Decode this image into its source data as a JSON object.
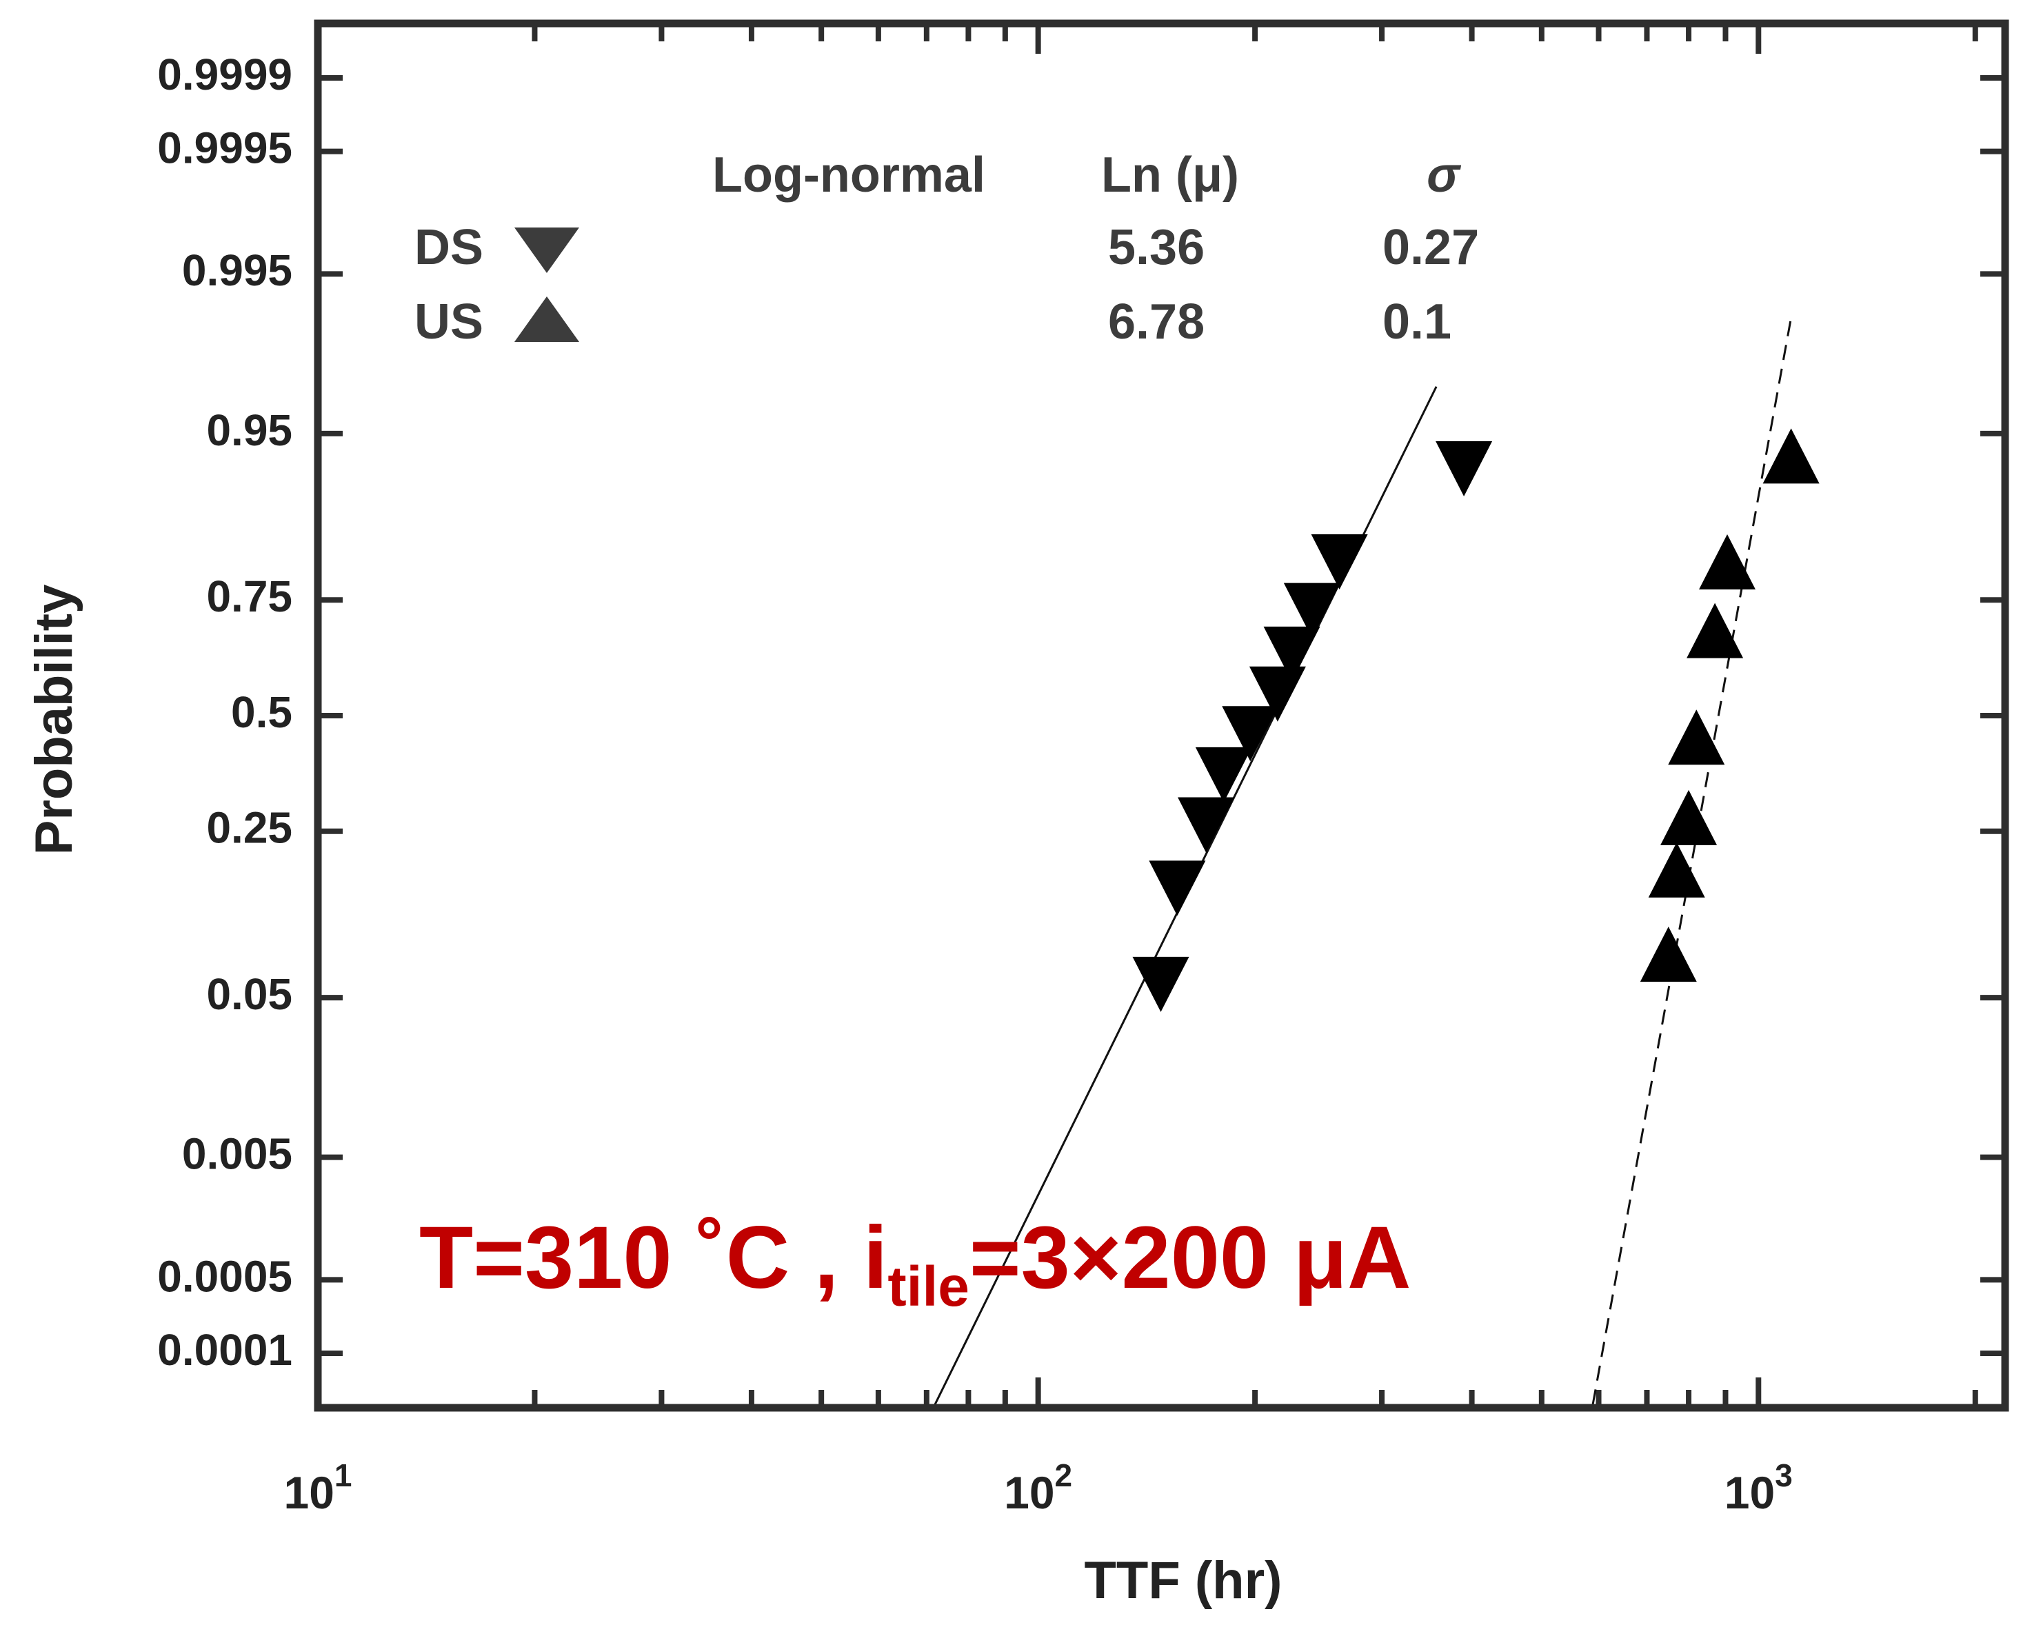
{
  "chart_data": {
    "type": "scatter",
    "xlabel": "TTF (hr)",
    "ylabel": "Probability",
    "xscale": "log",
    "yscale": "log-normal probability",
    "xlim": [
      10,
      2200
    ],
    "x_ticks": [
      {
        "value": 10,
        "base": "10",
        "exp": "1"
      },
      {
        "value": 100,
        "base": "10",
        "exp": "2"
      },
      {
        "value": 1000,
        "base": "10",
        "exp": "3"
      }
    ],
    "y_ticks": [
      "0.9999",
      "0.9995",
      "0.995",
      "0.95",
      "0.75",
      "0.5",
      "0.25",
      "0.05",
      "0.005",
      "0.0005",
      "0.0001"
    ],
    "grid": false,
    "series": [
      {
        "name": "DS",
        "marker": "triangle-down",
        "color": "#000000",
        "fit": {
          "ln_mu": 5.36,
          "sigma": 0.27,
          "line": "solid"
        },
        "x": [
          148,
          156,
          171,
          181,
          197,
          215,
          225,
          240,
          262,
          390
        ],
        "y": [
          0.0585,
          0.157,
          0.262,
          0.365,
          0.458,
          0.55,
          0.64,
          0.73,
          0.815,
          0.925
        ]
      },
      {
        "name": "US",
        "marker": "triangle-up",
        "color": "#000000",
        "fit": {
          "ln_mu": 6.78,
          "sigma": 0.1,
          "line": "dashed"
        },
        "x": [
          750,
          770,
          800,
          820,
          870,
          905,
          1110
        ],
        "y": [
          0.082,
          0.184,
          0.276,
          0.45,
          0.69,
          0.815,
          0.935
        ]
      }
    ],
    "legend": {
      "placement": "top-left",
      "headers": {
        "model": "Log-normal",
        "mu": "Ln (μ)",
        "sigma": "σ"
      },
      "rows": [
        {
          "label": "DS",
          "mu": "5.36",
          "sigma": "0.27"
        },
        {
          "label": "US",
          "mu": "6.78",
          "sigma": "0.1"
        }
      ]
    },
    "annotation": {
      "prefix": "T=310 ˚C , i",
      "subscript": "tile",
      "suffix": "=3×200 μA",
      "color": "#c00000"
    }
  }
}
